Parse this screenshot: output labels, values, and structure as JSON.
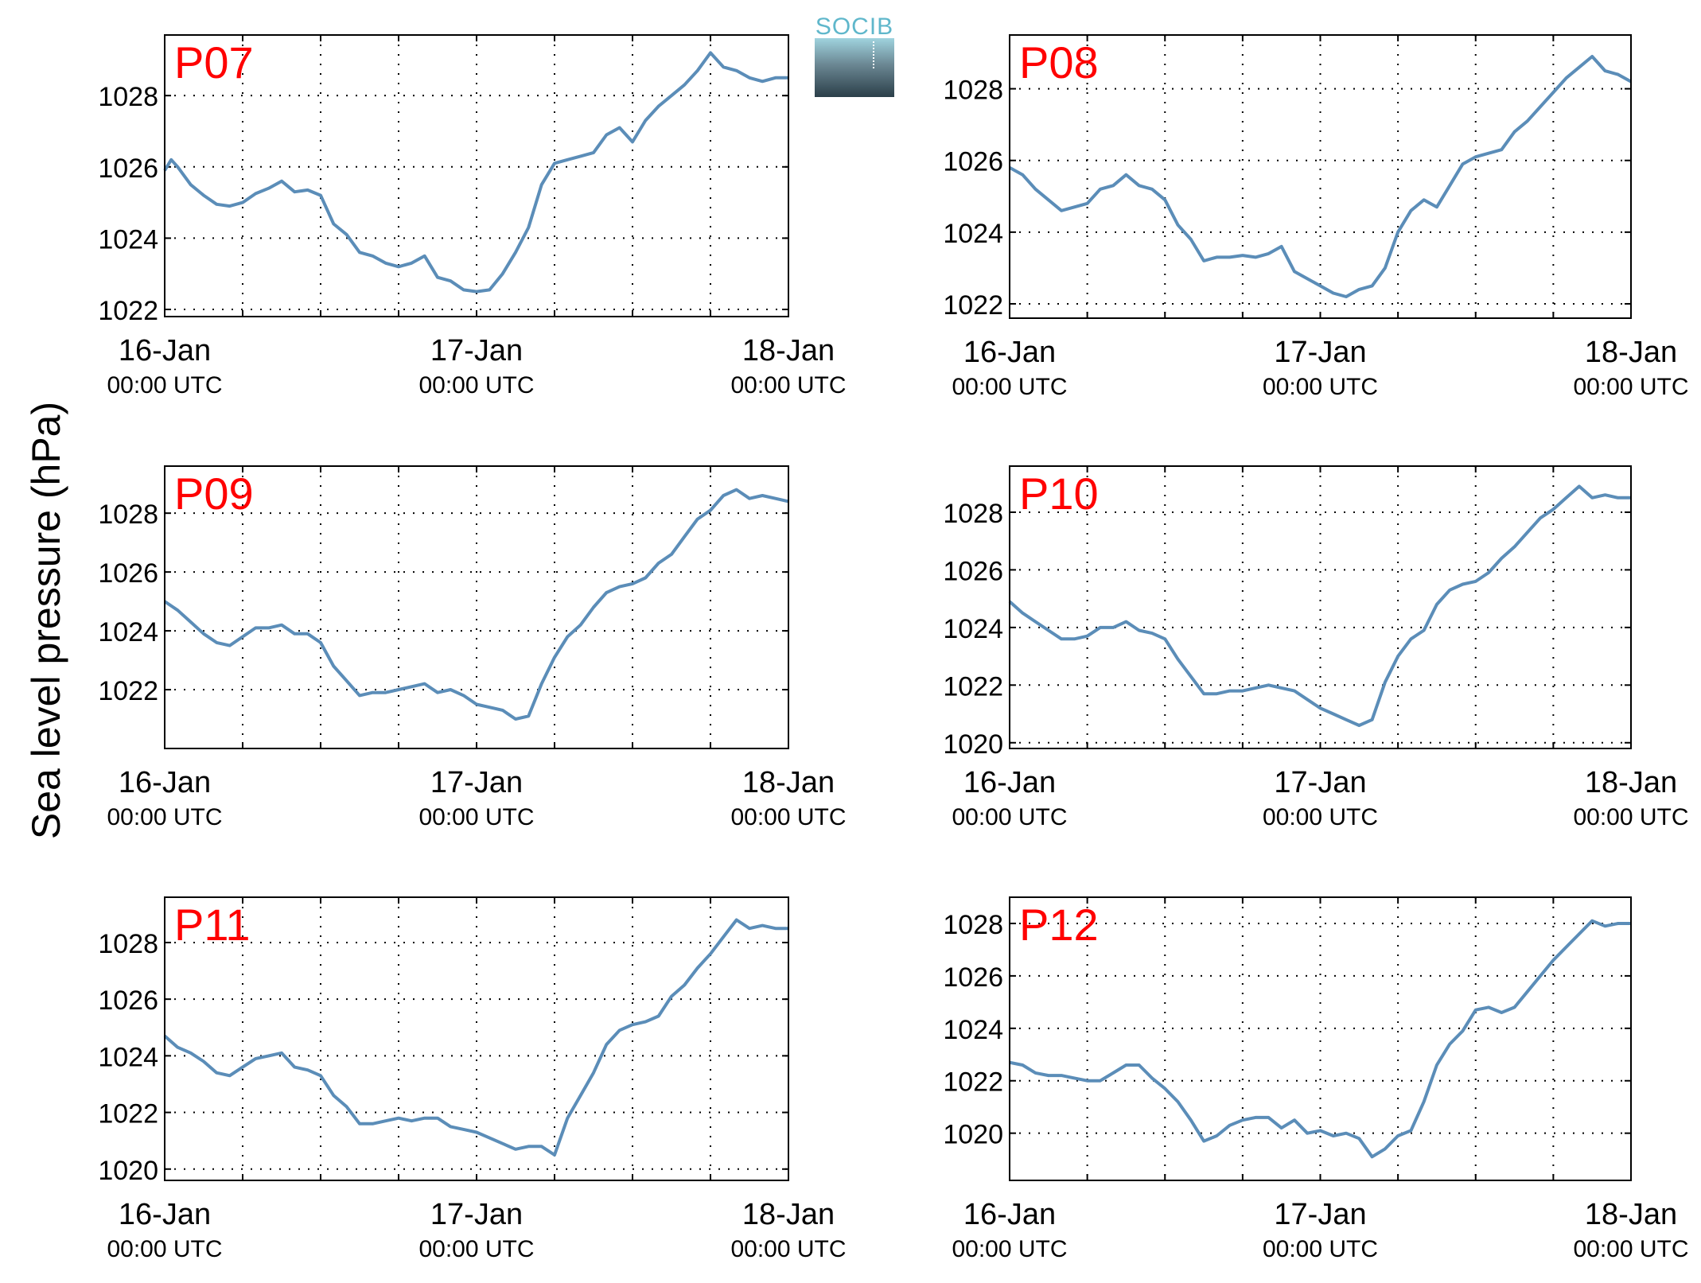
{
  "figure": {
    "ylabel": "Sea level pressure (hPa)",
    "logo_text": "SOCIB",
    "colors": {
      "line": "#5b8db8",
      "panel_label": "#ff0000",
      "axes": "#000000",
      "grid": "#000000"
    }
  },
  "chart_data": [
    {
      "type": "line",
      "title": "P07",
      "xticks": [
        [
          "16-Jan",
          "00:00 UTC"
        ],
        [
          "17-Jan",
          "00:00 UTC"
        ],
        [
          "18-Jan",
          "00:00 UTC"
        ]
      ],
      "xlim": [
        0,
        48
      ],
      "ylim": [
        1021.8,
        1029.7
      ],
      "yticks": [
        1022,
        1024,
        1026,
        1028
      ],
      "grid": true,
      "series": [
        {
          "x": [
            0,
            0.5,
            1,
            2,
            3,
            4,
            5,
            6,
            7,
            8,
            9,
            10,
            11,
            12,
            13,
            14,
            15,
            16,
            17,
            18,
            19,
            20,
            21,
            22,
            23,
            24,
            25,
            26,
            27,
            28,
            29,
            30,
            31,
            32,
            33,
            34,
            35,
            36,
            37,
            38,
            39,
            40,
            41,
            42,
            43,
            44,
            45,
            46,
            47,
            48
          ],
          "values": [
            1025.9,
            1026.2,
            1026.0,
            1025.5,
            1025.2,
            1024.95,
            1024.9,
            1025.0,
            1025.25,
            1025.4,
            1025.6,
            1025.3,
            1025.35,
            1025.2,
            1024.4,
            1024.1,
            1023.6,
            1023.5,
            1023.3,
            1023.2,
            1023.3,
            1023.5,
            1022.9,
            1022.8,
            1022.55,
            1022.5,
            1022.55,
            1023.0,
            1023.6,
            1024.3,
            1025.5,
            1026.1,
            1026.2,
            1026.3,
            1026.4,
            1026.9,
            1027.1,
            1026.7,
            1027.3,
            1027.7,
            1028.0,
            1028.3,
            1028.7,
            1029.2,
            1028.8,
            1028.7,
            1028.5,
            1028.4,
            1028.5,
            1028.5
          ]
        }
      ]
    },
    {
      "type": "line",
      "title": "P08",
      "xticks": [
        [
          "16-Jan",
          "00:00 UTC"
        ],
        [
          "17-Jan",
          "00:00 UTC"
        ],
        [
          "18-Jan",
          "00:00 UTC"
        ]
      ],
      "xlim": [
        0,
        48
      ],
      "ylim": [
        1021.6,
        1029.5
      ],
      "yticks": [
        1022,
        1024,
        1026,
        1028
      ],
      "grid": true,
      "series": [
        {
          "x": [
            0,
            1,
            2,
            3,
            4,
            5,
            6,
            7,
            8,
            9,
            10,
            11,
            12,
            13,
            14,
            15,
            16,
            17,
            18,
            19,
            20,
            21,
            22,
            23,
            24,
            25,
            26,
            27,
            28,
            29,
            30,
            31,
            32,
            33,
            34,
            35,
            36,
            37,
            38,
            39,
            40,
            41,
            42,
            43,
            44,
            45,
            46,
            47,
            48
          ],
          "values": [
            1025.8,
            1025.6,
            1025.2,
            1024.9,
            1024.6,
            1024.7,
            1024.8,
            1025.2,
            1025.3,
            1025.6,
            1025.3,
            1025.2,
            1024.9,
            1024.2,
            1023.8,
            1023.2,
            1023.3,
            1023.3,
            1023.35,
            1023.3,
            1023.4,
            1023.6,
            1022.9,
            1022.7,
            1022.5,
            1022.3,
            1022.2,
            1022.4,
            1022.5,
            1023.0,
            1024.0,
            1024.6,
            1024.9,
            1024.7,
            1025.3,
            1025.9,
            1026.1,
            1026.2,
            1026.3,
            1026.8,
            1027.1,
            1027.5,
            1027.9,
            1028.3,
            1028.6,
            1028.9,
            1028.5,
            1028.4,
            1028.2
          ]
        }
      ]
    },
    {
      "type": "line",
      "title": "P09",
      "xticks": [
        [
          "16-Jan",
          "00:00 UTC"
        ],
        [
          "17-Jan",
          "00:00 UTC"
        ],
        [
          "18-Jan",
          "00:00 UTC"
        ]
      ],
      "xlim": [
        0,
        48
      ],
      "ylim": [
        1020.0,
        1029.6
      ],
      "yticks": [
        1022,
        1024,
        1026,
        1028
      ],
      "grid": true,
      "series": [
        {
          "x": [
            0,
            1,
            2,
            3,
            4,
            5,
            6,
            7,
            8,
            9,
            10,
            11,
            12,
            13,
            14,
            15,
            16,
            17,
            18,
            19,
            20,
            21,
            22,
            23,
            24,
            25,
            26,
            27,
            28,
            29,
            30,
            31,
            32,
            33,
            34,
            35,
            36,
            37,
            38,
            39,
            40,
            41,
            42,
            43,
            44,
            45,
            46,
            47,
            48
          ],
          "values": [
            1025.0,
            1024.7,
            1024.3,
            1023.9,
            1023.6,
            1023.5,
            1023.8,
            1024.1,
            1024.1,
            1024.2,
            1023.9,
            1023.9,
            1023.6,
            1022.8,
            1022.3,
            1021.8,
            1021.9,
            1021.9,
            1022.0,
            1022.1,
            1022.2,
            1021.9,
            1022.0,
            1021.8,
            1021.5,
            1021.4,
            1021.3,
            1021.0,
            1021.1,
            1022.2,
            1023.1,
            1023.8,
            1024.2,
            1024.8,
            1025.3,
            1025.5,
            1025.6,
            1025.8,
            1026.3,
            1026.6,
            1027.2,
            1027.8,
            1028.1,
            1028.6,
            1028.8,
            1028.5,
            1028.6,
            1028.5,
            1028.4
          ]
        }
      ]
    },
    {
      "type": "line",
      "title": "P10",
      "xticks": [
        [
          "16-Jan",
          "00:00 UTC"
        ],
        [
          "17-Jan",
          "00:00 UTC"
        ],
        [
          "18-Jan",
          "00:00 UTC"
        ]
      ],
      "xlim": [
        0,
        48
      ],
      "ylim": [
        1019.8,
        1029.6
      ],
      "yticks": [
        1020,
        1022,
        1024,
        1026,
        1028
      ],
      "grid": true,
      "series": [
        {
          "x": [
            0,
            1,
            2,
            3,
            4,
            5,
            6,
            7,
            8,
            9,
            10,
            11,
            12,
            13,
            14,
            15,
            16,
            17,
            18,
            19,
            20,
            21,
            22,
            23,
            24,
            25,
            26,
            27,
            28,
            29,
            30,
            31,
            32,
            33,
            34,
            35,
            36,
            37,
            38,
            39,
            40,
            41,
            42,
            43,
            44,
            45,
            46,
            47,
            48
          ],
          "values": [
            1024.9,
            1024.5,
            1024.2,
            1023.9,
            1023.6,
            1023.6,
            1023.7,
            1024.0,
            1024.0,
            1024.2,
            1023.9,
            1023.8,
            1023.6,
            1022.9,
            1022.3,
            1021.7,
            1021.7,
            1021.8,
            1021.8,
            1021.9,
            1022.0,
            1021.9,
            1021.8,
            1021.5,
            1021.2,
            1021.0,
            1020.8,
            1020.6,
            1020.8,
            1022.1,
            1023.0,
            1023.6,
            1023.9,
            1024.8,
            1025.3,
            1025.5,
            1025.6,
            1025.9,
            1026.4,
            1026.8,
            1027.3,
            1027.8,
            1028.1,
            1028.5,
            1028.9,
            1028.5,
            1028.6,
            1028.5,
            1028.5
          ]
        }
      ]
    },
    {
      "type": "line",
      "title": "P11",
      "xticks": [
        [
          "16-Jan",
          "00:00 UTC"
        ],
        [
          "17-Jan",
          "00:00 UTC"
        ],
        [
          "18-Jan",
          "00:00 UTC"
        ]
      ],
      "xlim": [
        0,
        48
      ],
      "ylim": [
        1019.6,
        1029.6
      ],
      "yticks": [
        1020,
        1022,
        1024,
        1026,
        1028
      ],
      "grid": true,
      "series": [
        {
          "x": [
            0,
            1,
            2,
            3,
            4,
            5,
            6,
            7,
            8,
            9,
            10,
            11,
            12,
            13,
            14,
            15,
            16,
            17,
            18,
            19,
            20,
            21,
            22,
            23,
            24,
            25,
            26,
            27,
            28,
            29,
            30,
            31,
            32,
            33,
            34,
            35,
            36,
            37,
            38,
            39,
            40,
            41,
            42,
            43,
            44,
            45,
            46,
            47,
            48
          ],
          "values": [
            1024.7,
            1024.3,
            1024.1,
            1023.8,
            1023.4,
            1023.3,
            1023.6,
            1023.9,
            1024.0,
            1024.1,
            1023.6,
            1023.5,
            1023.3,
            1022.6,
            1022.2,
            1021.6,
            1021.6,
            1021.7,
            1021.8,
            1021.7,
            1021.8,
            1021.8,
            1021.5,
            1021.4,
            1021.3,
            1021.1,
            1020.9,
            1020.7,
            1020.8,
            1020.8,
            1020.5,
            1021.8,
            1022.6,
            1023.4,
            1024.4,
            1024.9,
            1025.1,
            1025.2,
            1025.4,
            1026.1,
            1026.5,
            1027.1,
            1027.6,
            1028.2,
            1028.8,
            1028.5,
            1028.6,
            1028.5,
            1028.5
          ]
        }
      ]
    },
    {
      "type": "line",
      "title": "P12",
      "xticks": [
        [
          "16-Jan",
          "00:00 UTC"
        ],
        [
          "17-Jan",
          "00:00 UTC"
        ],
        [
          "18-Jan",
          "00:00 UTC"
        ]
      ],
      "xlim": [
        0,
        48
      ],
      "ylim": [
        1018.2,
        1029.0
      ],
      "yticks": [
        1020,
        1022,
        1024,
        1026,
        1028
      ],
      "grid": true,
      "series": [
        {
          "x": [
            0,
            1,
            2,
            3,
            4,
            5,
            6,
            7,
            8,
            9,
            10,
            11,
            12,
            13,
            14,
            15,
            16,
            17,
            18,
            19,
            20,
            21,
            22,
            23,
            24,
            25,
            26,
            27,
            28,
            29,
            30,
            31,
            32,
            33,
            34,
            35,
            36,
            37,
            38,
            39,
            40,
            41,
            42,
            43,
            44,
            45,
            46,
            47,
            48
          ],
          "values": [
            1022.7,
            1022.6,
            1022.3,
            1022.2,
            1022.2,
            1022.1,
            1022.0,
            1022.0,
            1022.3,
            1022.6,
            1022.6,
            1022.1,
            1021.7,
            1021.2,
            1020.5,
            1019.7,
            1019.9,
            1020.3,
            1020.5,
            1020.6,
            1020.6,
            1020.2,
            1020.5,
            1020.0,
            1020.1,
            1019.9,
            1020.0,
            1019.8,
            1019.1,
            1019.4,
            1019.9,
            1020.1,
            1021.2,
            1022.6,
            1023.4,
            1023.9,
            1024.7,
            1024.8,
            1024.6,
            1024.8,
            1025.4,
            1026.0,
            1026.6,
            1027.1,
            1027.6,
            1028.1,
            1027.9,
            1028.0,
            1028.0
          ]
        }
      ]
    }
  ]
}
